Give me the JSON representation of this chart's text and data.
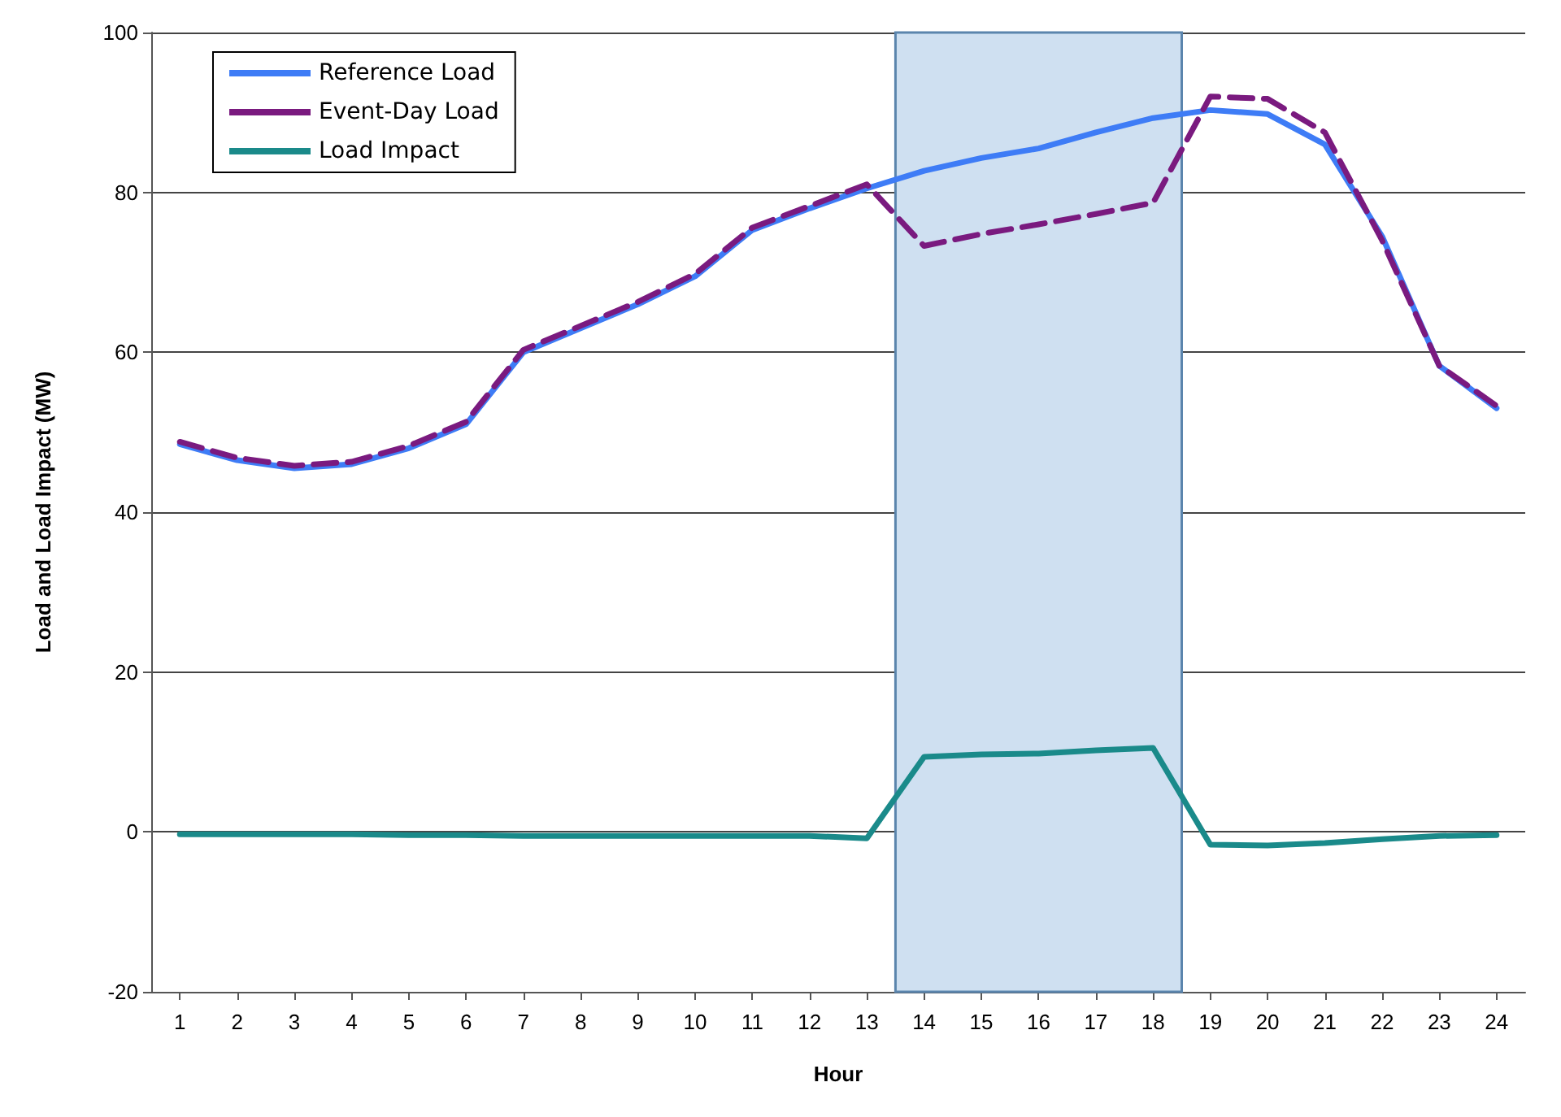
{
  "chart_data": {
    "type": "line",
    "xlabel": "Hour",
    "ylabel": "Load and Load Impact (MW)",
    "x": [
      1,
      2,
      3,
      4,
      5,
      6,
      7,
      8,
      9,
      10,
      11,
      12,
      13,
      14,
      15,
      16,
      17,
      18,
      19,
      20,
      21,
      22,
      23,
      24
    ],
    "xlim": [
      0.5,
      24.5
    ],
    "xticks": [
      1,
      2,
      3,
      4,
      5,
      6,
      7,
      8,
      9,
      10,
      11,
      12,
      13,
      14,
      15,
      16,
      17,
      18,
      19,
      20,
      21,
      22,
      23,
      24
    ],
    "ylim": [
      -20,
      100
    ],
    "yticks": [
      -20,
      0,
      20,
      40,
      60,
      80,
      100
    ],
    "series": [
      {
        "name": "Reference Load",
        "color": "#3e7cf6",
        "line_style": "solid",
        "values": [
          48.5,
          46.5,
          45.5,
          46,
          48,
          51,
          60,
          63,
          66,
          69.5,
          75.3,
          78,
          80.5,
          82.7,
          84.3,
          85.5,
          87.5,
          89.3,
          90.3,
          89.8,
          86,
          74.5,
          58.3,
          53
        ]
      },
      {
        "name": "Event-Day Load",
        "color": "#7a1a7f",
        "line_style": "dashed",
        "values": [
          48.8,
          46.8,
          45.8,
          46.3,
          48.3,
          51.3,
          60.3,
          63.3,
          66.3,
          69.8,
          75.6,
          78.3,
          81,
          73.3,
          74.8,
          76,
          77.3,
          78.7,
          92,
          91.7,
          87.5,
          74,
          58.3,
          53.3
        ]
      },
      {
        "name": "Load Impact",
        "color": "#1a8a8a",
        "line_style": "solid",
        "values": [
          -0.3,
          -0.3,
          -0.3,
          -0.3,
          -0.4,
          -0.4,
          -0.5,
          -0.5,
          -0.5,
          -0.5,
          -0.5,
          -0.5,
          -0.8,
          9.4,
          9.7,
          9.8,
          10.2,
          10.5,
          -1.6,
          -1.7,
          -1.4,
          -0.9,
          -0.5,
          -0.4
        ]
      }
    ],
    "bands": [
      {
        "axis": "x",
        "from": 13.5,
        "to": 18.5,
        "color": "#cfe0f1"
      }
    ],
    "grid": "y",
    "legend": "top left",
    "marker": "none"
  }
}
